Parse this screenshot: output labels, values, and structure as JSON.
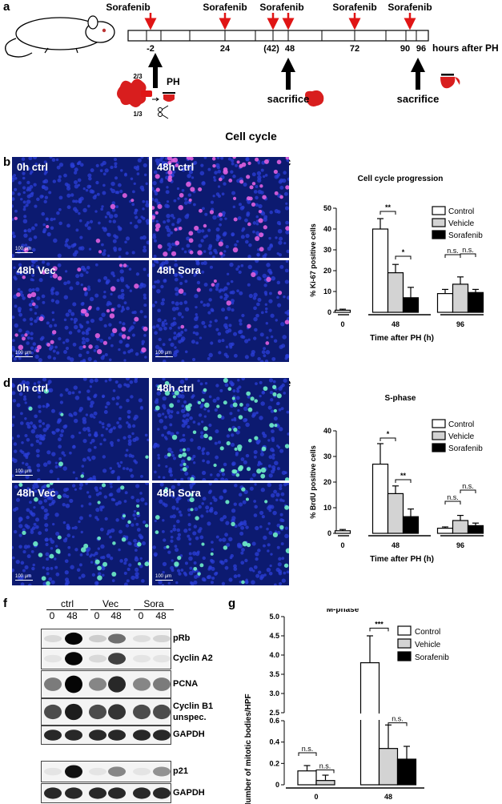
{
  "panel_letters": {
    "a": "a",
    "b": "b",
    "c": "c",
    "d": "d",
    "e": "e",
    "f": "f",
    "g": "g"
  },
  "timeline": {
    "drug": "Sorafenib",
    "ticks": [
      "-2",
      "24",
      "(42)",
      "48",
      "72",
      "90",
      "96"
    ],
    "unit": "hours after PH",
    "ph": "PH",
    "frac_top": "2/3",
    "frac_bottom": "1/3",
    "sacrifice": "sacrifice"
  },
  "cell_cycle_heading": "Cell cycle",
  "ki67_images": [
    {
      "label": "0h ctrl",
      "positive": 8
    },
    {
      "label": "48h ctrl",
      "positive": 80
    },
    {
      "label": "48h Vec",
      "positive": 45
    },
    {
      "label": "48h Sora",
      "positive": 12
    }
  ],
  "brdu_images": [
    {
      "label": "0h ctrl",
      "positive": 6
    },
    {
      "label": "48h ctrl",
      "positive": 70
    },
    {
      "label": "48h Vec",
      "positive": 35
    },
    {
      "label": "48h Sora",
      "positive": 30
    }
  ],
  "scalebar": "100 µm",
  "chart_data": [
    {
      "type": "bar",
      "title": "Cell cycle progression",
      "xlabel": "Time after PH (h)",
      "ylabel": "% Ki-67 positive cells",
      "ylim": [
        0,
        50
      ],
      "yticks": [
        "0",
        "10",
        "20",
        "30",
        "40",
        "50"
      ],
      "categories": [
        "0",
        "48",
        "96"
      ],
      "legend": [
        "Control",
        "Vehicle",
        "Sorafenib"
      ],
      "series": [
        {
          "name": "Control",
          "values": [
            1,
            40,
            9
          ],
          "errors": [
            0.5,
            5,
            2
          ]
        },
        {
          "name": "Vehicle",
          "values": [
            null,
            19,
            13.5
          ],
          "errors": [
            null,
            4,
            3.5
          ]
        },
        {
          "name": "Sorafenib",
          "values": [
            null,
            7,
            9.5
          ],
          "errors": [
            null,
            5,
            1.5
          ]
        }
      ],
      "annotations": [
        "**",
        "*",
        "n.s.",
        "n.s."
      ]
    },
    {
      "type": "bar",
      "title": "S-phase",
      "xlabel": "Time after PH (h)",
      "ylabel": "% BrdU positive cells",
      "ylim": [
        0,
        40
      ],
      "yticks": [
        "0",
        "10",
        "20",
        "30",
        "40"
      ],
      "categories": [
        "0",
        "48",
        "96"
      ],
      "legend": [
        "Control",
        "Vehicle",
        "Sorafenib"
      ],
      "series": [
        {
          "name": "Control",
          "values": [
            1,
            27,
            2
          ],
          "errors": [
            0.5,
            8,
            0.5
          ]
        },
        {
          "name": "Vehicle",
          "values": [
            null,
            15.5,
            5
          ],
          "errors": [
            null,
            3,
            2
          ]
        },
        {
          "name": "Sorafenib",
          "values": [
            null,
            6.5,
            3
          ],
          "errors": [
            null,
            3,
            1
          ]
        }
      ],
      "annotations": [
        "*",
        "**",
        "n.s.",
        "n.s."
      ]
    },
    {
      "type": "bar",
      "title": "M-phase",
      "xlabel": "Time after PH (h)",
      "ylabel": "Number of mitotic bodies/HPF",
      "yticks": [
        "0",
        "0.2",
        "0.4",
        "0.6",
        "2.5",
        "3.0",
        "3.5",
        "4.0",
        "4.5",
        "5.0"
      ],
      "axis_break": [
        0.6,
        2.5
      ],
      "categories": [
        "0",
        "48"
      ],
      "legend": [
        "Control",
        "Vehicle",
        "Sorafenib"
      ],
      "series": [
        {
          "name": "Control",
          "values": [
            0.13,
            3.8
          ],
          "errors": [
            0.05,
            0.7
          ]
        },
        {
          "name": "Vehicle",
          "values": [
            0.04,
            0.34
          ],
          "errors": [
            0.05,
            0.22
          ]
        },
        {
          "name": "Sorafenib",
          "values": [
            null,
            0.24
          ],
          "errors": [
            null,
            0.12
          ]
        }
      ],
      "annotations": [
        "n.s.",
        "n.s.",
        "***",
        "n.s."
      ]
    }
  ],
  "western": {
    "groups": [
      "ctrl",
      "Vec",
      "Sora"
    ],
    "timepoints": [
      "0",
      "48",
      "0",
      "48",
      "0",
      "48"
    ],
    "rows": [
      {
        "label": "pRb",
        "intensity": [
          0.1,
          1,
          0.15,
          0.55,
          0.08,
          0.12
        ]
      },
      {
        "label": "Cyclin A2",
        "intensity": [
          0.05,
          1,
          0.1,
          0.75,
          0.05,
          0.05
        ]
      },
      {
        "label": "PCNA",
        "intensity": [
          0.5,
          1,
          0.45,
          0.85,
          0.45,
          0.5
        ]
      },
      {
        "label": "Cyclin B1",
        "label2": "unspec.",
        "intensity": [
          0.7,
          0.9,
          0.7,
          0.8,
          0.7,
          0.7
        ]
      },
      {
        "label": "GAPDH",
        "intensity": [
          0.85,
          0.85,
          0.85,
          0.85,
          0.85,
          0.85
        ]
      },
      {
        "label": "p21",
        "intensity": [
          0.05,
          0.95,
          0.05,
          0.45,
          0.05,
          0.4
        ]
      },
      {
        "label": "GAPDH",
        "intensity": [
          0.85,
          0.85,
          0.85,
          0.85,
          0.85,
          0.85
        ]
      }
    ]
  }
}
